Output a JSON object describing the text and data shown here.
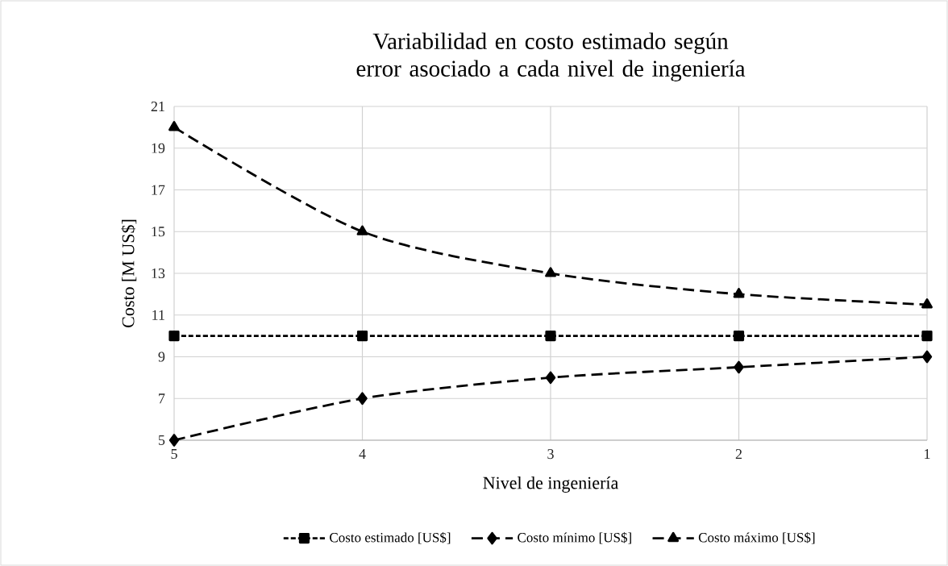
{
  "chart_data": {
    "type": "line",
    "title": "Variabilidad en costo estimado según error asociado a cada nivel de ingeniería",
    "xlabel": "Nivel de ingeniería",
    "ylabel": "Costo [M US$]",
    "categories": [
      "5",
      "4",
      "3",
      "2",
      "1"
    ],
    "series": [
      {
        "name": "Costo estimado [US$]",
        "color": "#000000",
        "values": [
          10,
          10,
          10,
          10,
          10
        ],
        "marker": "square",
        "line_style": "dotted"
      },
      {
        "name": "Costo mínimo [US$]",
        "color": "#000000",
        "values": [
          5,
          7,
          8,
          8.5,
          9
        ],
        "marker": "diamond",
        "line_style": "dashed"
      },
      {
        "name": "Costo máximo [US$]",
        "color": "#000000",
        "values": [
          20,
          15,
          13,
          12,
          11.5
        ],
        "marker": "triangle",
        "line_style": "dashed"
      }
    ],
    "ylim": [
      5,
      21
    ],
    "yticks": [
      5,
      7,
      9,
      11,
      13,
      15,
      17,
      19,
      21
    ],
    "grid": true,
    "legend": "bottom"
  }
}
